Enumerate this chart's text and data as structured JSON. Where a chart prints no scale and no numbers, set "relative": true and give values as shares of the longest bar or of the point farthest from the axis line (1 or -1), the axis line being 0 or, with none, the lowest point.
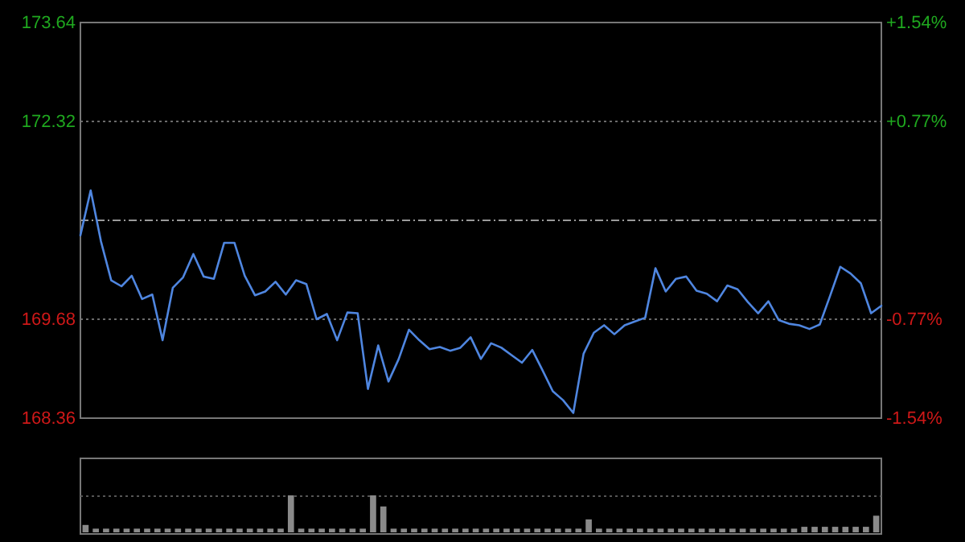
{
  "chart_data": [
    {
      "type": "line",
      "categories": [
        null,
        null,
        null,
        null,
        null,
        null,
        null,
        null,
        null,
        null,
        null,
        null,
        null,
        null,
        null,
        null,
        null,
        null,
        null,
        null,
        null,
        null,
        null,
        null,
        null,
        null,
        null,
        null,
        null,
        null,
        null,
        null,
        null,
        null,
        null,
        null,
        null,
        null,
        null,
        null,
        null,
        null,
        null,
        null,
        null,
        null,
        null,
        null,
        null,
        null,
        null,
        null,
        null,
        null,
        null,
        null,
        null,
        null,
        null,
        null,
        null,
        null,
        null,
        null,
        null,
        null,
        null,
        null,
        null,
        null,
        null,
        null,
        null,
        null,
        null,
        null,
        null,
        null,
        null
      ],
      "series": [
        {
          "color": "#4f86e0",
          "values": [
            170.8,
            171.4,
            170.72,
            170.2,
            170.12,
            170.26,
            169.95,
            170.01,
            169.4,
            170.1,
            170.24,
            170.55,
            170.25,
            170.22,
            170.7,
            170.7,
            170.26,
            170.0,
            170.05,
            170.18,
            170.01,
            170.2,
            170.15,
            169.68,
            169.75,
            169.4,
            169.77,
            169.76,
            168.75,
            169.33,
            168.85,
            169.15,
            169.54,
            169.4,
            169.28,
            169.31,
            169.26,
            169.3,
            169.44,
            169.15,
            169.36,
            169.3,
            169.2,
            169.1,
            169.27,
            169.0,
            168.72,
            168.6,
            168.43,
            169.22,
            169.5,
            169.6,
            169.48,
            169.6,
            169.65,
            169.7,
            170.36,
            170.05,
            170.22,
            170.25,
            170.06,
            170.02,
            169.92,
            170.13,
            170.08,
            169.91,
            169.76,
            169.92,
            169.67,
            169.62,
            169.6,
            169.55,
            169.61,
            169.99,
            170.38,
            170.29,
            170.16,
            169.76,
            169.86
          ]
        }
      ],
      "ylim": [
        168.36,
        173.64
      ],
      "yticks": [
        173.64,
        172.32,
        169.68,
        168.36
      ],
      "ref_lines": [
        {
          "axis": "y",
          "value": 171,
          "color": "#9a9a9a",
          "line_style": "dashed"
        }
      ],
      "y2lim": [
        -1.54,
        1.54
      ],
      "y2ticks": [
        {
          "value": 1.54,
          "label": "+1.54%"
        },
        {
          "value": 0.77,
          "label": "+0.77%"
        },
        {
          "value": -0.77,
          "label": "-0.77%"
        },
        {
          "value": -1.54,
          "label": "-1.54%"
        }
      ],
      "grid": "y"
    },
    {
      "type": "bar",
      "relative": true,
      "color": "#8a8a8a",
      "categories": [
        null,
        null,
        null,
        null,
        null,
        null,
        null,
        null,
        null,
        null,
        null,
        null,
        null,
        null,
        null,
        null,
        null,
        null,
        null,
        null,
        null,
        null,
        null,
        null,
        null,
        null,
        null,
        null,
        null,
        null,
        null,
        null,
        null,
        null,
        null,
        null,
        null,
        null,
        null,
        null,
        null,
        null,
        null,
        null,
        null,
        null,
        null,
        null,
        null,
        null,
        null,
        null,
        null,
        null,
        null,
        null,
        null,
        null,
        null,
        null,
        null,
        null,
        null,
        null,
        null,
        null,
        null,
        null,
        null,
        null,
        null,
        null,
        null,
        null,
        null,
        null,
        null,
        null
      ],
      "values": [
        0.2,
        0.1,
        0.1,
        0.1,
        0.1,
        0.1,
        0.1,
        0.1,
        0.1,
        0.1,
        0.1,
        0.1,
        0.1,
        0.1,
        0.1,
        0.1,
        0.1,
        0.1,
        0.1,
        0.1,
        1.0,
        0.1,
        0.1,
        0.1,
        0.1,
        0.1,
        0.1,
        0.1,
        1.0,
        0.7,
        0.1,
        0.1,
        0.1,
        0.1,
        0.1,
        0.1,
        0.1,
        0.1,
        0.1,
        0.1,
        0.1,
        0.1,
        0.1,
        0.1,
        0.1,
        0.1,
        0.1,
        0.1,
        0.1,
        0.35,
        0.1,
        0.1,
        0.1,
        0.1,
        0.1,
        0.1,
        0.1,
        0.1,
        0.1,
        0.1,
        0.1,
        0.1,
        0.1,
        0.1,
        0.1,
        0.1,
        0.1,
        0.1,
        0.1,
        0.1,
        0.15,
        0.15,
        0.15,
        0.15,
        0.15,
        0.15,
        0.15,
        0.45
      ]
    }
  ]
}
